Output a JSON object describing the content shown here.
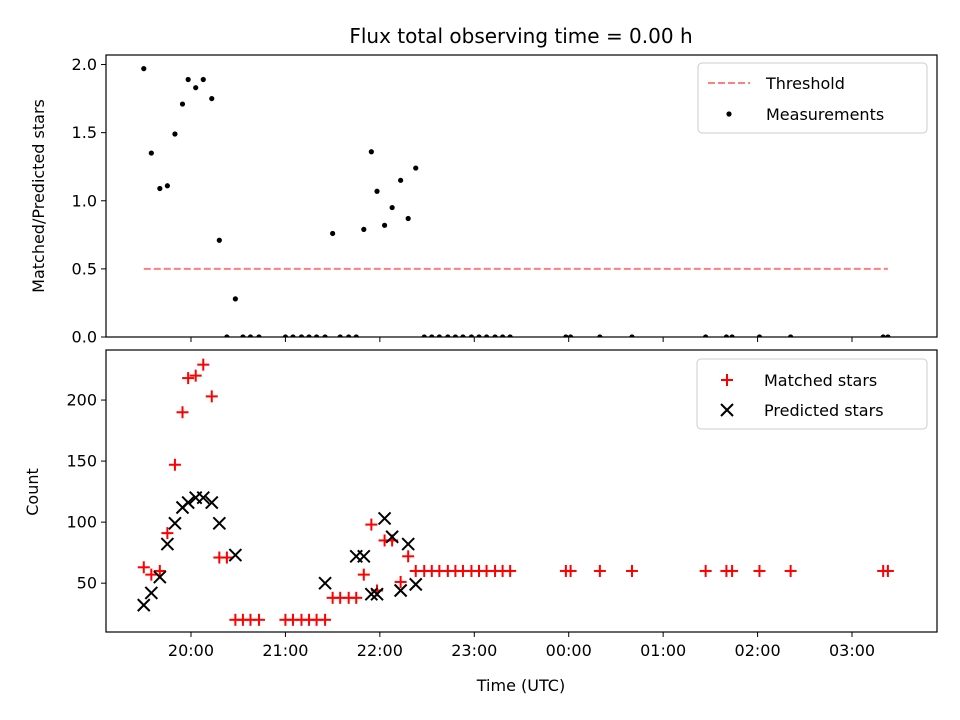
{
  "chart_data": [
    {
      "type": "scatter",
      "title": "Flux total observing time = 0.00 h",
      "xlabel": "",
      "ylabel": "Matched/Predicted stars",
      "xlim": [
        19.1,
        27.9
      ],
      "ylim": [
        0,
        2.07
      ],
      "yticks": [
        0.0,
        0.5,
        1.0,
        1.5,
        2.0
      ],
      "ytick_labels": [
        "0.0",
        "0.5",
        "1.0",
        "1.5",
        "2.0"
      ],
      "xticks": [
        20,
        21,
        22,
        23,
        24,
        25,
        26,
        27
      ],
      "show_xtick_labels": false,
      "grid": false,
      "legend_position": "top-right",
      "series": [
        {
          "name": "Threshold",
          "kind": "line",
          "style": "dashed",
          "color": "#ff7f7f",
          "x": [
            19.5,
            27.38
          ],
          "y": [
            0.5,
            0.5
          ]
        },
        {
          "name": "Measurements",
          "kind": "scatter",
          "marker": "dot",
          "color": "#000000",
          "x": [
            19.5,
            19.58,
            19.67,
            19.75,
            19.83,
            19.91,
            19.97,
            20.05,
            20.13,
            20.22,
            20.3,
            20.38,
            20.47,
            20.55,
            20.63,
            20.72,
            21.0,
            21.08,
            21.17,
            21.25,
            21.33,
            21.42,
            21.5,
            21.58,
            21.67,
            21.75,
            21.83,
            21.91,
            21.97,
            22.05,
            22.13,
            22.22,
            22.3,
            22.38,
            22.47,
            22.55,
            22.63,
            22.72,
            22.8,
            22.88,
            22.97,
            23.05,
            23.13,
            23.22,
            23.3,
            23.38,
            23.97,
            24.02,
            24.33,
            24.67,
            25.45,
            25.67,
            25.73,
            26.02,
            26.35,
            27.33,
            27.38
          ],
          "y": [
            1.97,
            1.35,
            1.09,
            1.11,
            1.49,
            1.71,
            1.89,
            1.83,
            1.89,
            1.75,
            0.71,
            0.0,
            0.28,
            0.0,
            0.0,
            0.0,
            0.0,
            0.0,
            0.0,
            0.0,
            0.0,
            0.0,
            0.76,
            0.0,
            0.0,
            0.0,
            0.79,
            1.36,
            1.07,
            0.82,
            0.95,
            1.15,
            0.87,
            1.24,
            0.0,
            0.0,
            0.0,
            0.0,
            0.0,
            0.0,
            0.0,
            0.0,
            0.0,
            0.0,
            0.0,
            0.0,
            0.0,
            0.0,
            0.0,
            0.0,
            0.0,
            0.0,
            0.0,
            0.0,
            0.0,
            0.0,
            0.0
          ]
        }
      ]
    },
    {
      "type": "scatter",
      "title": "",
      "xlabel": "Time (UTC)",
      "ylabel": "Count",
      "xlim": [
        19.1,
        27.9
      ],
      "ylim": [
        10,
        241
      ],
      "yticks": [
        50,
        100,
        150,
        200
      ],
      "ytick_labels": [
        "50",
        "100",
        "150",
        "200"
      ],
      "xticks": [
        20,
        21,
        22,
        23,
        24,
        25,
        26,
        27
      ],
      "xtick_labels": [
        "20:00",
        "21:00",
        "22:00",
        "23:00",
        "00:00",
        "01:00",
        "02:00",
        "03:00"
      ],
      "grid": false,
      "legend_position": "top-right",
      "series": [
        {
          "name": "Matched stars",
          "kind": "scatter",
          "marker": "plus",
          "color": "#ff0000",
          "x": [
            19.5,
            19.58,
            19.67,
            19.75,
            19.83,
            19.91,
            19.97,
            20.05,
            20.13,
            20.22,
            20.3,
            20.38,
            20.47,
            20.55,
            20.63,
            20.72,
            21.0,
            21.08,
            21.17,
            21.25,
            21.33,
            21.42,
            21.5,
            21.58,
            21.67,
            21.75,
            21.83,
            21.91,
            21.97,
            22.05,
            22.13,
            22.22,
            22.3,
            22.38,
            22.47,
            22.55,
            22.63,
            22.72,
            22.8,
            22.88,
            22.97,
            23.05,
            23.13,
            23.22,
            23.3,
            23.38,
            23.97,
            24.02,
            24.33,
            24.67,
            25.45,
            25.67,
            25.73,
            26.02,
            26.35,
            27.33,
            27.38
          ],
          "y": [
            63,
            57,
            60,
            91,
            147,
            190,
            218,
            220,
            229,
            203,
            71,
            71,
            20,
            20,
            20,
            20,
            20,
            20,
            20,
            20,
            20,
            20,
            38,
            38,
            38,
            38,
            57,
            98,
            44,
            85,
            85,
            51,
            72,
            60,
            60,
            60,
            60,
            60,
            60,
            60,
            60,
            60,
            60,
            60,
            60,
            60,
            60,
            60,
            60,
            60,
            60,
            60,
            60,
            60,
            60,
            60,
            60
          ]
        },
        {
          "name": "Predicted stars",
          "kind": "scatter",
          "marker": "x",
          "color": "#000000",
          "x": [
            19.5,
            19.58,
            19.67,
            19.75,
            19.83,
            19.91,
            19.97,
            20.05,
            20.13,
            20.22,
            20.3,
            20.47,
            21.42,
            21.75,
            21.83,
            21.91,
            21.97,
            22.05,
            22.13,
            22.22,
            22.3,
            22.38
          ],
          "y": [
            32,
            42,
            55,
            82,
            99,
            112,
            116,
            120,
            120,
            116,
            99,
            73,
            50,
            72,
            72,
            41,
            41,
            103,
            88,
            44,
            82,
            49
          ]
        }
      ]
    }
  ]
}
